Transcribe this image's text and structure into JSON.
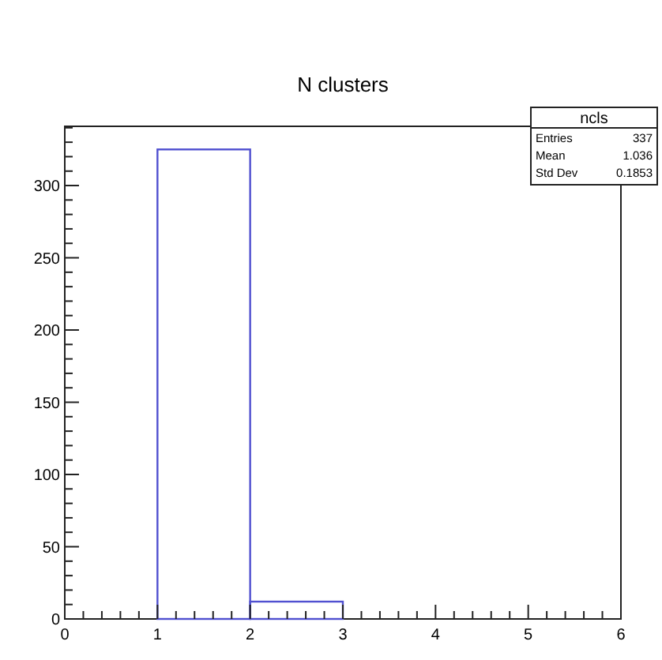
{
  "chart_data": {
    "type": "histogram",
    "title": "N clusters",
    "bins": [
      0,
      1,
      2,
      3,
      4,
      5,
      6
    ],
    "values": [
      0,
      325,
      12,
      0,
      0,
      0
    ],
    "color": "#5050d0",
    "xlim": [
      0,
      6
    ],
    "xticks": [
      0,
      1,
      2,
      3,
      4,
      5,
      6
    ],
    "ylim": [
      0,
      341
    ],
    "yticks": [
      0,
      50,
      100,
      150,
      200,
      250,
      300
    ],
    "grid": false,
    "annotations": [
      "ncls",
      "Entries",
      "337",
      "Mean",
      "1.036",
      "Std Dev",
      "0.1853"
    ]
  }
}
